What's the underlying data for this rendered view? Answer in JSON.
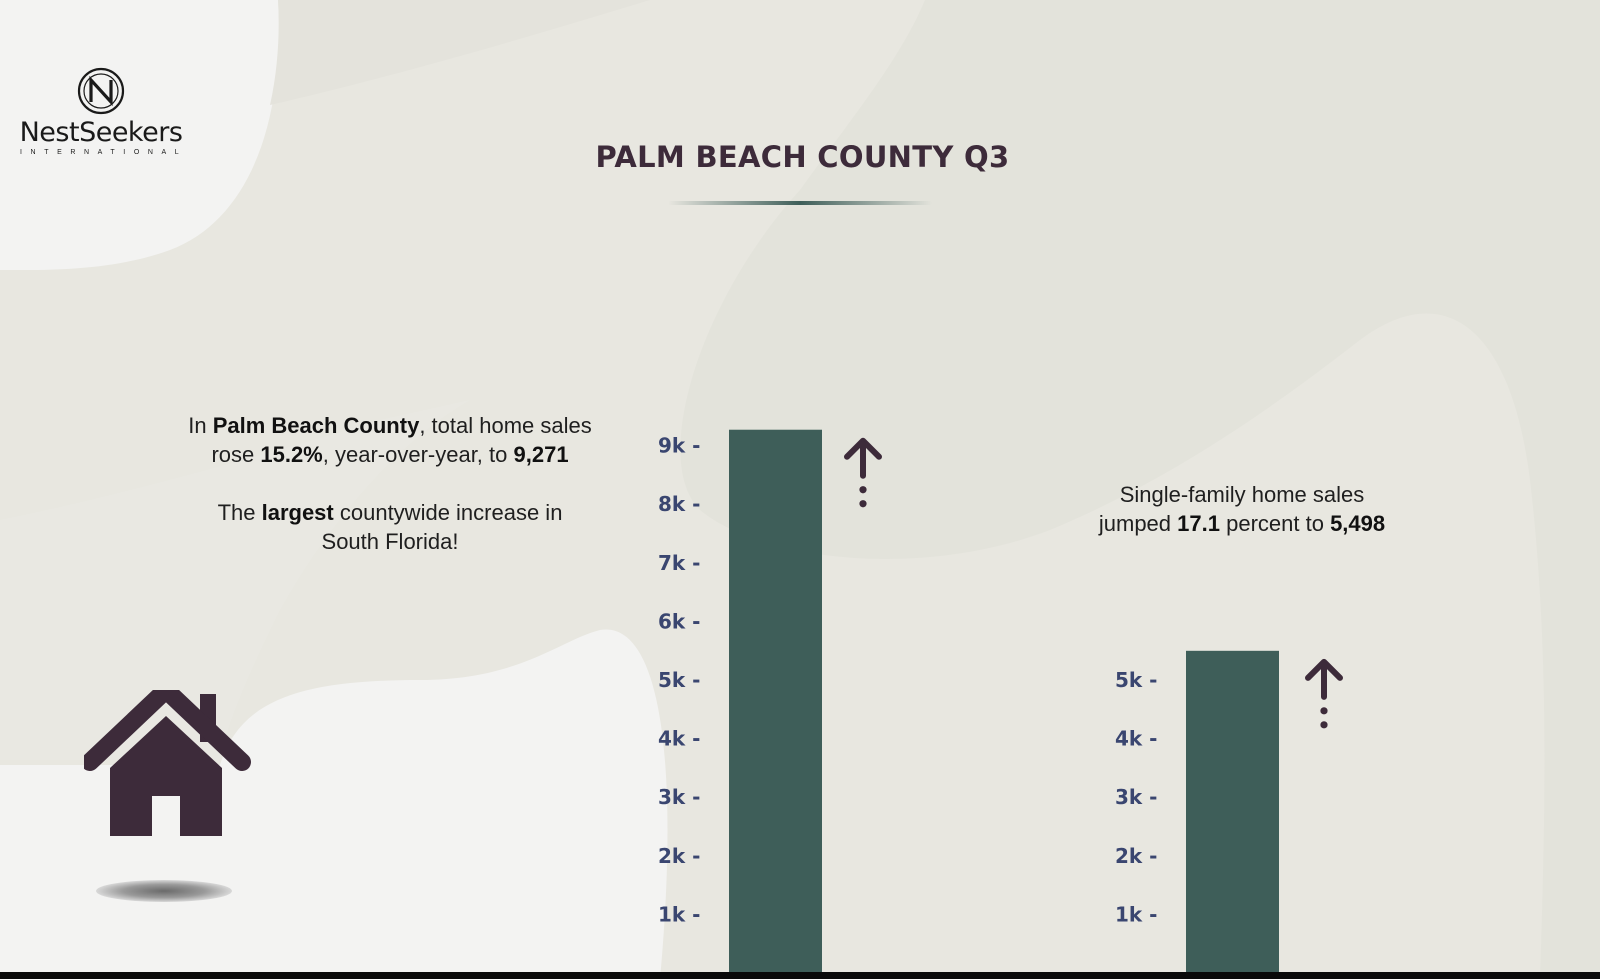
{
  "brand": {
    "name": "NestSeekers",
    "subtitle": "INTERNATIONAL",
    "mark_letter": "N"
  },
  "title": "PALM BEACH COUNTY Q3",
  "blurb_left": {
    "line1_pre": "In ",
    "line1_bold": "Palm Beach County",
    "line1_post": ", total home sales",
    "line2_pre": "rose ",
    "line2_bold1": "15.2%",
    "line2_mid": ", year-over-year, to ",
    "line2_bold2": "9,271",
    "line3_pre": "The ",
    "line3_bold": "largest",
    "line3_post": " countywide increase in",
    "line4": "South Florida!"
  },
  "blurb_right": {
    "line1": "Single-family home sales",
    "line2_pre": "jumped ",
    "line2_bold1": "17.1",
    "line2_mid": " percent to ",
    "line2_bold2": "5,498"
  },
  "icons": {
    "house": "house-icon",
    "arrow": "arrow-up-icon"
  },
  "colors": {
    "bar": "#3e5e59",
    "accent": "#3d2b3a",
    "tick": "#3a4670",
    "background": "#e8e7e0"
  },
  "chart_data": [
    {
      "type": "bar",
      "categories": [
        ""
      ],
      "values": [
        9271
      ],
      "yticks": [
        "1k -",
        "2k -",
        "3k -",
        "4k -",
        "5k -",
        "6k -",
        "7k -",
        "8k -",
        "9k -"
      ],
      "ytick_values": [
        1000,
        2000,
        3000,
        4000,
        5000,
        6000,
        7000,
        8000,
        9000
      ],
      "ylim": [
        0,
        9271
      ],
      "trend": "up",
      "title": "",
      "xlabel": "",
      "ylabel": ""
    },
    {
      "type": "bar",
      "categories": [
        ""
      ],
      "values": [
        5498
      ],
      "yticks": [
        "1k -",
        "2k -",
        "3k -",
        "4k -",
        "5k -"
      ],
      "ytick_values": [
        1000,
        2000,
        3000,
        4000,
        5000
      ],
      "ylim": [
        0,
        5498
      ],
      "trend": "up",
      "title": "",
      "xlabel": "",
      "ylabel": ""
    }
  ]
}
